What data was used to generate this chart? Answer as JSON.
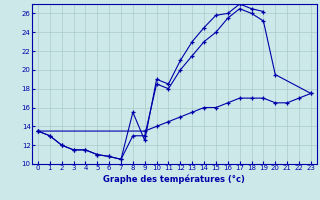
{
  "xlabel": "Graphe des températures (°c)",
  "bg_color": "#cce8e8",
  "line_color": "#0000aa",
  "ylim": [
    10,
    27
  ],
  "xlim": [
    -0.5,
    23.5
  ],
  "yticks": [
    10,
    12,
    14,
    16,
    18,
    20,
    22,
    24,
    26
  ],
  "xticks": [
    0,
    1,
    2,
    3,
    4,
    5,
    6,
    7,
    8,
    9,
    10,
    11,
    12,
    13,
    14,
    15,
    16,
    17,
    18,
    19,
    20,
    21,
    22,
    23
  ],
  "line1_x": [
    0,
    1,
    2,
    3,
    4,
    5,
    6,
    7,
    8,
    9,
    10,
    11,
    12,
    13,
    14,
    15,
    16,
    17,
    18,
    19
  ],
  "line1_y": [
    13.5,
    13.0,
    12.0,
    11.5,
    11.5,
    11.0,
    10.8,
    10.5,
    15.5,
    12.5,
    19.0,
    18.5,
    21.0,
    23.0,
    24.5,
    25.8,
    26.0,
    27.0,
    26.5,
    26.2
  ],
  "line2_x": [
    0,
    1,
    2,
    3,
    4,
    5,
    6,
    7,
    8,
    9,
    10,
    11,
    12,
    13,
    14,
    15,
    16,
    17,
    18,
    19,
    20,
    23
  ],
  "line2_y": [
    13.5,
    13.0,
    12.0,
    11.5,
    11.5,
    11.0,
    10.8,
    10.5,
    13.0,
    13.0,
    18.5,
    18.0,
    20.0,
    21.5,
    23.0,
    24.0,
    25.5,
    26.5,
    26.0,
    25.2,
    19.5,
    17.5
  ],
  "line3_x": [
    0,
    9,
    10,
    11,
    12,
    13,
    14,
    15,
    16,
    17,
    18,
    19,
    20,
    21,
    22,
    23
  ],
  "line3_y": [
    13.5,
    13.5,
    14.0,
    14.5,
    15.0,
    15.5,
    16.0,
    16.0,
    16.5,
    17.0,
    17.0,
    17.0,
    16.5,
    16.5,
    17.0,
    17.5
  ]
}
